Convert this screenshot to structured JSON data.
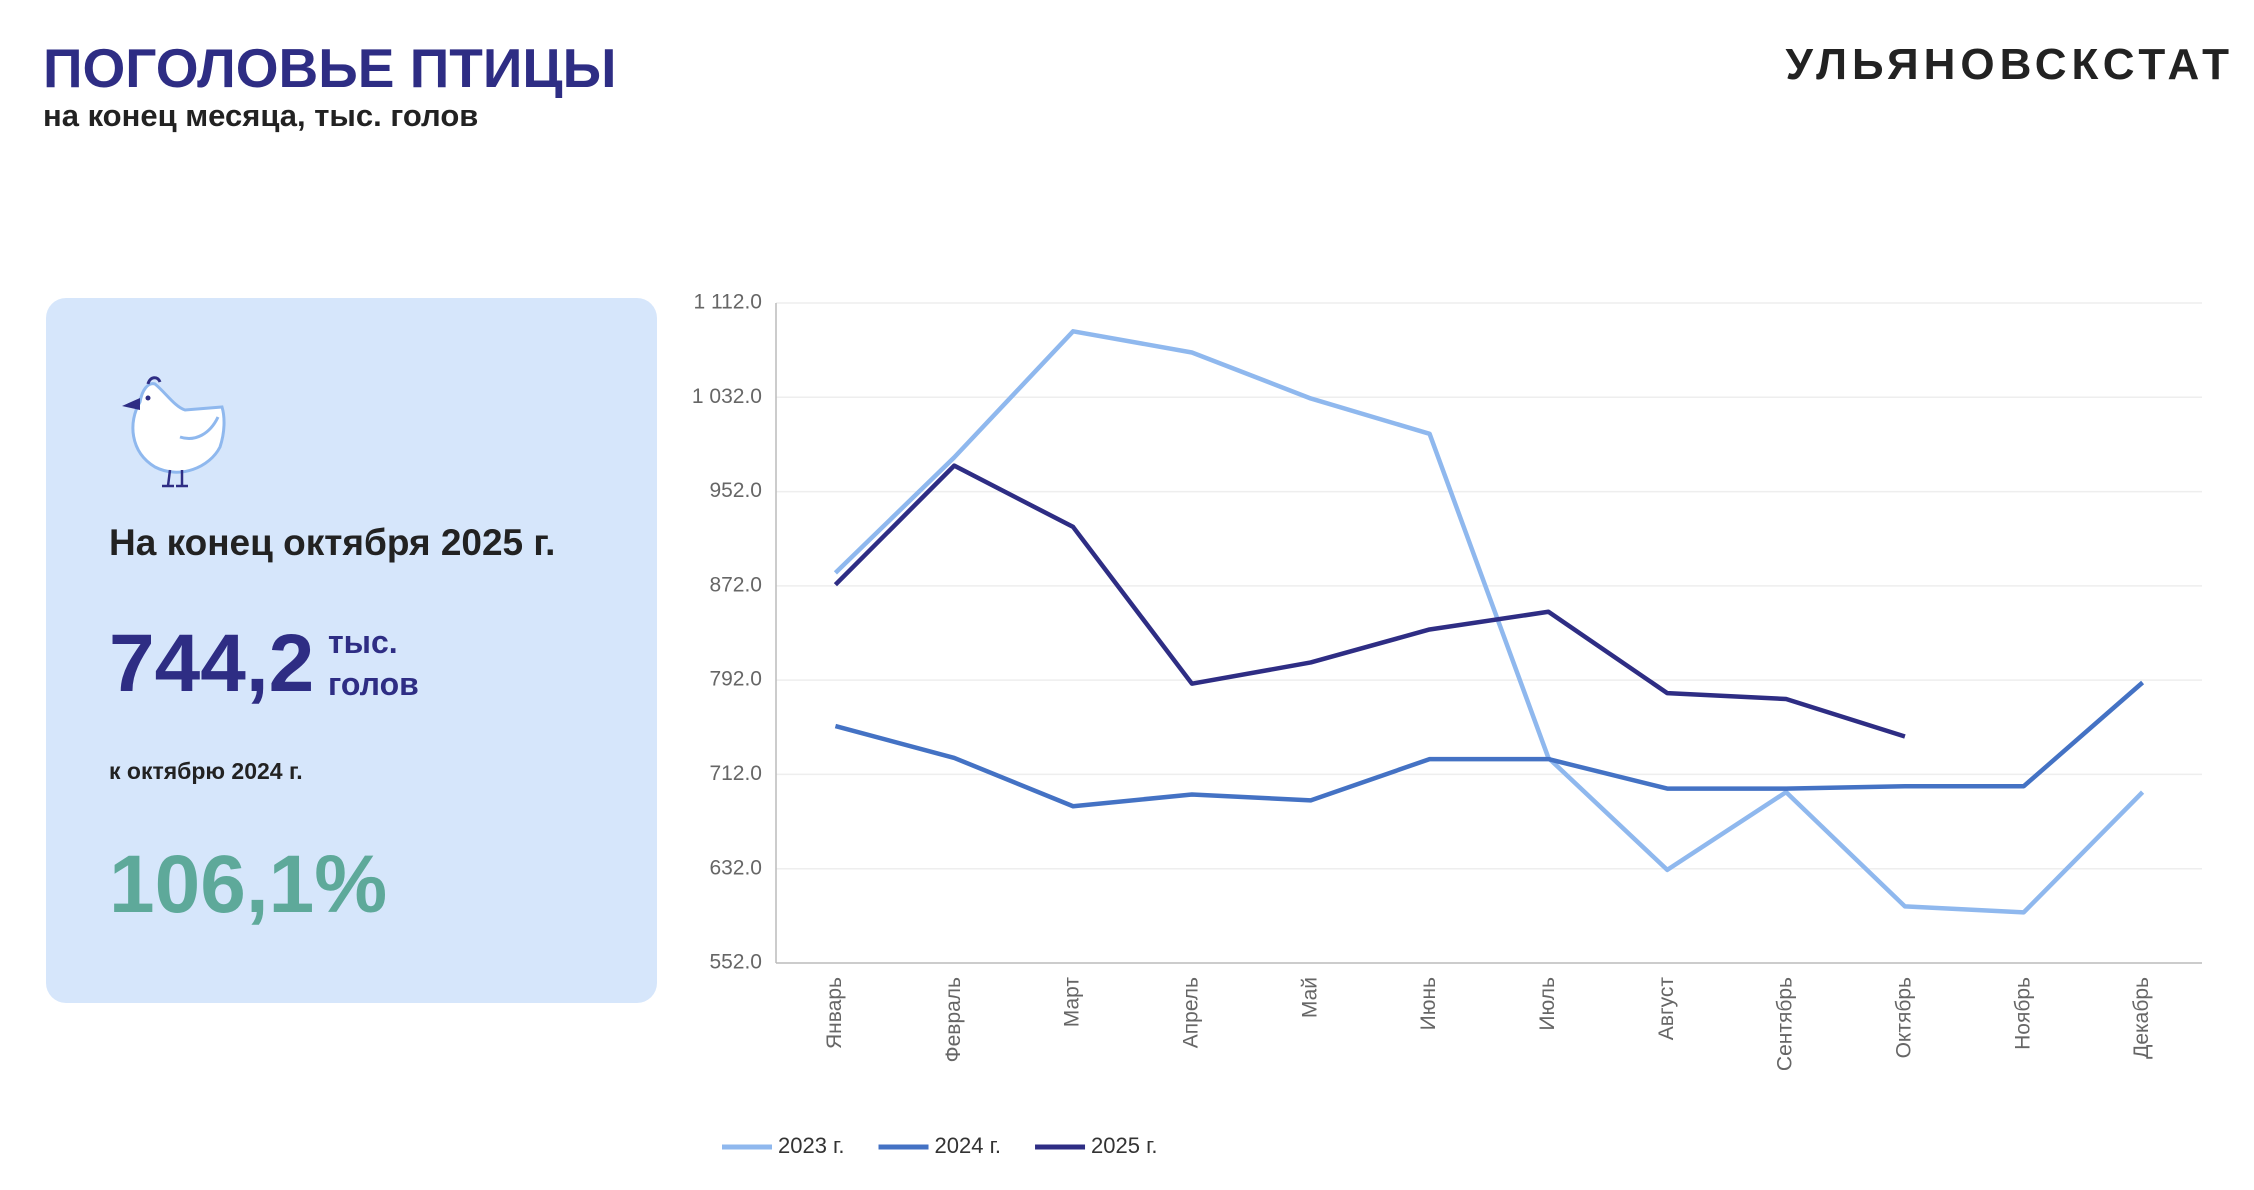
{
  "header": {
    "title": "ПОГОЛОВЬЕ ПТИЦЫ",
    "subtitle": "на конец месяца, тыс. голов",
    "logo": "УЛЬЯНОВСКСТАТ"
  },
  "panel": {
    "heading": "На конец октября 2025 г.",
    "value": "744,2",
    "unit": "тыс. голов",
    "compare_label": "к октябрю 2024 г.",
    "compare_value": "106,1%"
  },
  "chart_data": {
    "type": "line",
    "categories": [
      "Январь",
      "Февраль",
      "Март",
      "Апрель",
      "Май",
      "Июнь",
      "Июль",
      "Август",
      "Сентябрь",
      "Октябрь",
      "Ноябрь",
      "Декабрь"
    ],
    "series": [
      {
        "name": "2023 г.",
        "color": "#8fb8ee",
        "values": [
          883,
          981,
          1088,
          1070,
          1031,
          1001,
          726,
          631,
          697,
          600,
          595,
          697
        ]
      },
      {
        "name": "2024 г.",
        "color": "#4472c4",
        "values": [
          753,
          726,
          685,
          695,
          690,
          725,
          725,
          700,
          700,
          702,
          702,
          790
        ]
      },
      {
        "name": "2025 г.",
        "color": "#2e2d84",
        "values": [
          873,
          974,
          922,
          789,
          807,
          835,
          850,
          781,
          776,
          744.2,
          null,
          null
        ]
      }
    ],
    "ylim": [
      552,
      1112
    ],
    "yticks": [
      {
        "value": 552,
        "label": "552.0"
      },
      {
        "value": 632,
        "label": "632.0"
      },
      {
        "value": 712,
        "label": "712.0"
      },
      {
        "value": 792,
        "label": "792.0"
      },
      {
        "value": 872,
        "label": "872.0"
      },
      {
        "value": 952,
        "label": "952.0"
      },
      {
        "value": 1032,
        "label": "1 032.0"
      },
      {
        "value": 1112,
        "label": "1 112.0"
      }
    ],
    "grid": true,
    "legend": "bottom"
  }
}
